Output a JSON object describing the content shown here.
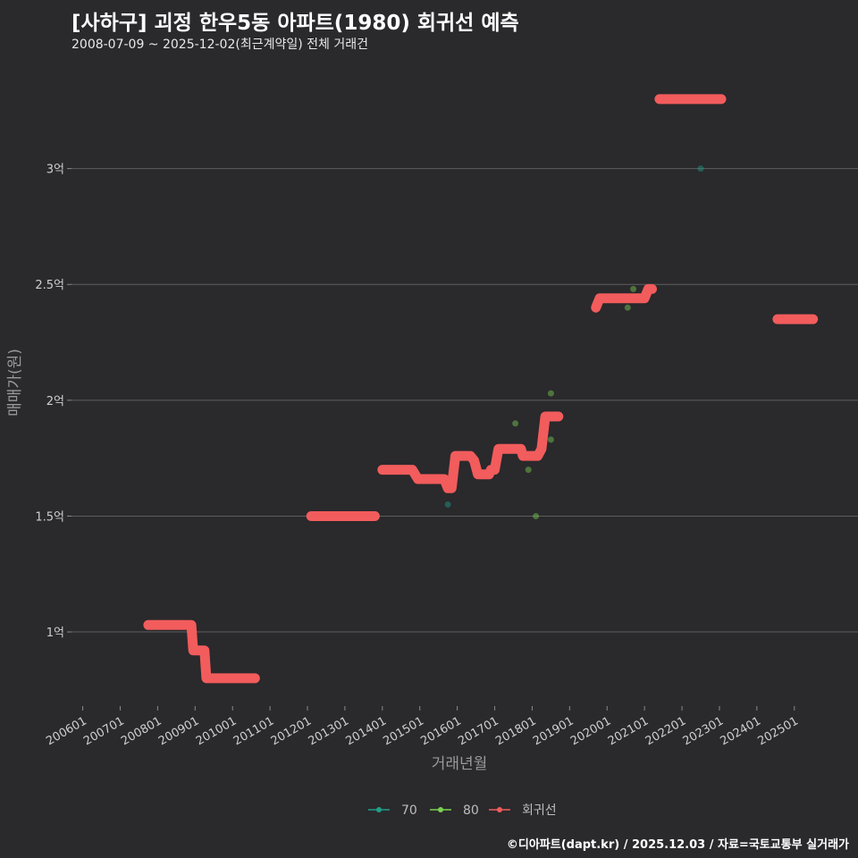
{
  "header": {
    "title": "[사하구] 괴정 한우5동 아파트(1980) 회귀선 예측",
    "subtitle": "2008-07-09 ~ 2025-12-02(최근계약일) 전체 거래건"
  },
  "caption": "©디아파트(dapt.kr) / 2025.12.03 / 자료=국토교통부 실거래가",
  "colors": {
    "background": "#2a292c",
    "series_70": "#1f9e89",
    "series_80": "#7ad151",
    "regression": "#f25c5c",
    "grid": "#5e5e60"
  },
  "chart_data": {
    "type": "scatter",
    "title": "[사하구] 괴정 한우5동 아파트(1980) 회귀선 예측",
    "xlabel": "거래년월",
    "ylabel": "매매가(원)",
    "xlim": [
      2005.7,
      2026.7
    ],
    "ylim": [
      0.68,
      3.45
    ],
    "y_unit": "억",
    "x_ticks": [
      {
        "label": "200601",
        "value": 2006.0
      },
      {
        "label": "200701",
        "value": 2007.0
      },
      {
        "label": "200801",
        "value": 2008.0
      },
      {
        "label": "200901",
        "value": 2009.0
      },
      {
        "label": "201001",
        "value": 2010.0
      },
      {
        "label": "201101",
        "value": 2011.0
      },
      {
        "label": "201201",
        "value": 2012.0
      },
      {
        "label": "201301",
        "value": 2013.0
      },
      {
        "label": "201401",
        "value": 2014.0
      },
      {
        "label": "201501",
        "value": 2015.0
      },
      {
        "label": "201601",
        "value": 2016.0
      },
      {
        "label": "201701",
        "value": 2017.0
      },
      {
        "label": "201801",
        "value": 2018.0
      },
      {
        "label": "201901",
        "value": 2019.0
      },
      {
        "label": "202001",
        "value": 2020.0
      },
      {
        "label": "202101",
        "value": 2021.0
      },
      {
        "label": "202201",
        "value": 2022.0
      },
      {
        "label": "202301",
        "value": 2023.0
      },
      {
        "label": "202401",
        "value": 2024.0
      },
      {
        "label": "202501",
        "value": 2025.0
      }
    ],
    "y_ticks": [
      {
        "label": "1억",
        "value": 1.0
      },
      {
        "label": "1.5억",
        "value": 1.5
      },
      {
        "label": "2억",
        "value": 2.0
      },
      {
        "label": "2.5억",
        "value": 2.5
      },
      {
        "label": "3억",
        "value": 3.0
      }
    ],
    "legend": {
      "position": "bottom",
      "entries": [
        "70",
        "80",
        "회귀선"
      ]
    },
    "series": [
      {
        "name": "70",
        "points": [
          {
            "x": 2015.75,
            "y": 1.55
          },
          {
            "x": 2022.5,
            "y": 3.0
          }
        ]
      },
      {
        "name": "80",
        "points": [
          {
            "x": 2017.55,
            "y": 1.9
          },
          {
            "x": 2017.9,
            "y": 1.7
          },
          {
            "x": 2018.1,
            "y": 1.5
          },
          {
            "x": 2018.5,
            "y": 1.83
          },
          {
            "x": 2018.5,
            "y": 2.03
          },
          {
            "x": 2020.55,
            "y": 2.4
          },
          {
            "x": 2020.7,
            "y": 2.48
          }
        ]
      },
      {
        "name": "회귀선",
        "points": [
          {
            "x": 2007.75,
            "y": 1.03
          },
          {
            "x": 2008.9,
            "y": 1.03
          },
          {
            "x": 2008.95,
            "y": 0.92
          },
          {
            "x": 2009.25,
            "y": 0.92
          },
          {
            "x": 2009.3,
            "y": 0.8
          },
          {
            "x": 2010.6,
            "y": 0.8
          }
        ]
      },
      {
        "name": "회귀선",
        "points": [
          {
            "x": 2012.1,
            "y": 1.5
          },
          {
            "x": 2013.8,
            "y": 1.5
          }
        ]
      },
      {
        "name": "회귀선",
        "points": [
          {
            "x": 2014.0,
            "y": 1.7
          },
          {
            "x": 2014.8,
            "y": 1.7
          },
          {
            "x": 2014.95,
            "y": 1.66
          },
          {
            "x": 2015.65,
            "y": 1.66
          },
          {
            "x": 2015.75,
            "y": 1.62
          },
          {
            "x": 2015.85,
            "y": 1.62
          },
          {
            "x": 2015.95,
            "y": 1.76
          },
          {
            "x": 2016.35,
            "y": 1.76
          },
          {
            "x": 2016.45,
            "y": 1.74
          },
          {
            "x": 2016.55,
            "y": 1.68
          },
          {
            "x": 2016.85,
            "y": 1.68
          },
          {
            "x": 2016.9,
            "y": 1.7
          },
          {
            "x": 2017.0,
            "y": 1.7
          },
          {
            "x": 2017.1,
            "y": 1.79
          },
          {
            "x": 2017.7,
            "y": 1.79
          },
          {
            "x": 2017.75,
            "y": 1.76
          },
          {
            "x": 2018.15,
            "y": 1.76
          },
          {
            "x": 2018.25,
            "y": 1.79
          },
          {
            "x": 2018.35,
            "y": 1.93
          },
          {
            "x": 2018.7,
            "y": 1.93
          }
        ]
      },
      {
        "name": "회귀선",
        "points": [
          {
            "x": 2019.7,
            "y": 2.4
          },
          {
            "x": 2019.8,
            "y": 2.44
          },
          {
            "x": 2021.0,
            "y": 2.44
          },
          {
            "x": 2021.1,
            "y": 2.48
          },
          {
            "x": 2021.2,
            "y": 2.48
          }
        ]
      },
      {
        "name": "회귀선",
        "points": [
          {
            "x": 2021.4,
            "y": 3.3
          },
          {
            "x": 2023.05,
            "y": 3.3
          }
        ]
      },
      {
        "name": "회귀선",
        "points": [
          {
            "x": 2024.55,
            "y": 2.35
          },
          {
            "x": 2025.5,
            "y": 2.35
          }
        ]
      }
    ]
  }
}
